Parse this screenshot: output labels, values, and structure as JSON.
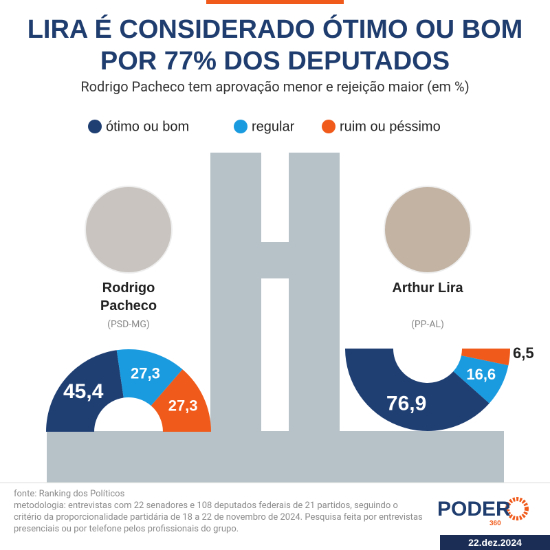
{
  "title": "LIRA É CONSIDERADO ÓTIMO OU BOM POR 77% DOS DEPUTADOS",
  "subtitle": "Rodrigo Pacheco tem aprovação menor e rejeição maior (em %)",
  "chart_data": [
    {
      "type": "half-donut",
      "half": "upper",
      "title": "Rodrigo Pacheco",
      "subtitle": "(PSD-MG)",
      "categories": [
        "ótimo ou bom",
        "regular",
        "ruim ou péssimo"
      ],
      "values": [
        45.4,
        27.3,
        27.3
      ],
      "value_labels": [
        "45,4",
        "27,3",
        "27,3"
      ],
      "colors": [
        "#1f3f73",
        "#1a9be0",
        "#f05a1a"
      ]
    },
    {
      "type": "half-donut",
      "half": "lower",
      "title": "Arthur Lira",
      "subtitle": "(PP-AL)",
      "categories": [
        "ótimo ou bom",
        "regular",
        "ruim ou péssimo"
      ],
      "values": [
        76.9,
        16.6,
        6.5
      ],
      "value_labels": [
        "76,9",
        "16,6",
        "6,5"
      ],
      "colors": [
        "#1f3f73",
        "#1a9be0",
        "#f05a1a"
      ]
    }
  ],
  "source": "fonte: Ranking dos Políticos",
  "methodology": "metodologia: entrevistas com 22 senadores e 108 deputados federais de 21 partidos, seguindo o critério da proporcionalidade partidária de 18 a 22 de novembro de 2024. Pesquisa feita por entrevistas presenciais ou por telefone pelos profissionais do grupo.",
  "brand": "PODER",
  "brand_sub": "360",
  "date": "22.dez.2024"
}
